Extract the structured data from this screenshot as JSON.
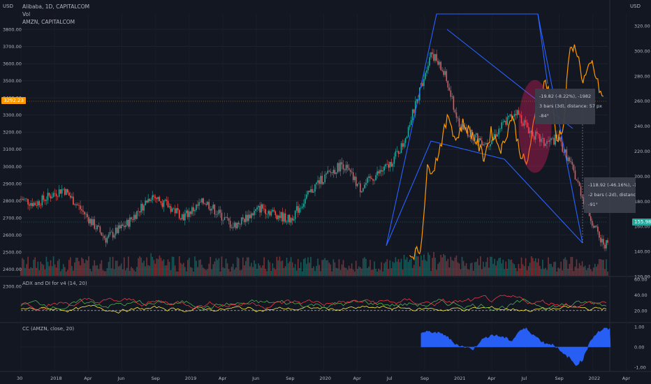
{
  "header": {
    "symbol": "Alibaba, 1D, CAPITALCOM",
    "vol": "Vol",
    "compare": "AMZN, CAPITALCOM",
    "currency_left": "USD",
    "currency_right": "USD"
  },
  "panes": {
    "adx_label": "ADX and DI for v4 (14, 20)",
    "cc_label": "CC (AMZN, close, 20)"
  },
  "tooltips": {
    "upper": {
      "range": "-19.82 (-8.22%), -1982",
      "bars": "3 bars (3d), distance: 57 px",
      "angle": "-84°"
    },
    "lower": {
      "range": "-118.92 (-46.16%), -11",
      "bars": "-2 bars (-2d), distance:",
      "angle": "-91°"
    }
  },
  "price_tags": {
    "left": "3292.23",
    "right": "155.98"
  },
  "colors": {
    "background": "#131722",
    "candle_up": "#26a69a",
    "candle_down": "#ef5350",
    "amzn_line": "#ff9800",
    "pattern_lines": "#2962ff",
    "adx": "#ffeb3b",
    "di_plus": "#4caf50",
    "di_minus": "#f23645",
    "cc_fill": "#2962ff",
    "highlight": "#e91e63"
  },
  "chart_data": {
    "type": "line",
    "title": "Alibaba, 1D, CAPITALCOM",
    "x_axis": {
      "ticks": [
        "30",
        "2018",
        "Apr",
        "Jun",
        "Sep",
        "2019",
        "Apr",
        "Jun",
        "Sep",
        "2020",
        "Apr",
        "Jul",
        "Sep",
        "2021",
        "Apr",
        "Jul",
        "Sep",
        "2022",
        "Apr"
      ]
    },
    "y_axis_left": {
      "label": "USD",
      "ticks": [
        "3800.00",
        "3700.00",
        "3600.00",
        "3500.00",
        "3400.00",
        "3300.00",
        "3200.00",
        "3100.00",
        "3000.00",
        "2900.00",
        "2800.00",
        "2700.00",
        "2600.00",
        "2500.00",
        "2400.00",
        "2300.00"
      ],
      "ylim": [
        2300,
        3800
      ]
    },
    "y_axis_right": {
      "label": "USD",
      "ticks": [
        "320.00",
        "300.00",
        "280.00",
        "260.00",
        "240.00",
        "220.00",
        "200.00",
        "180.00",
        "160.00",
        "140.00",
        "120.00"
      ],
      "ylim": [
        120,
        320
      ]
    },
    "series": [
      {
        "name": "Alibaba, 1D, CAPITALCOM",
        "axis": "right",
        "x_index": [
          0,
          20,
          60,
          90,
          120,
          150,
          185,
          230,
          260,
          300,
          340,
          380,
          420,
          455,
          480,
          500,
          520,
          540,
          560,
          580,
          600,
          620,
          640,
          660,
          680,
          700,
          720,
          740,
          760,
          780,
          800,
          820,
          830
        ],
        "values": [
          182,
          178,
          190,
          170,
          150,
          162,
          185,
          168,
          180,
          160,
          175,
          165,
          195,
          210,
          190,
          200,
          208,
          225,
          260,
          300,
          280,
          240,
          232,
          226,
          240,
          252,
          236,
          226,
          230,
          206,
          175,
          148,
          145
        ]
      },
      {
        "name": "AMZN, CAPITALCOM",
        "axis": "left",
        "x_index": [
          550,
          565,
          575,
          585,
          595,
          605,
          615,
          625,
          640,
          655,
          665,
          680,
          695,
          705,
          715,
          730,
          742,
          750,
          758,
          768,
          775,
          785,
          795,
          808,
          818,
          825
        ],
        "values": [
          2480,
          2510,
          2980,
          3000,
          3150,
          3300,
          3150,
          3250,
          3180,
          3050,
          3200,
          3100,
          3300,
          3100,
          3000,
          3350,
          3500,
          3400,
          3150,
          3250,
          3650,
          3700,
          3500,
          3600,
          3450,
          3380
        ]
      }
    ],
    "annotations": [
      {
        "type": "pattern",
        "label": "harmonic pattern",
        "points_x": [
          550,
          625,
          768,
          830
        ]
      },
      {
        "type": "ellipse",
        "label": "highlight"
      }
    ],
    "volume": {
      "name": "Vol"
    },
    "indicators": [
      {
        "name": "ADX and DI for v4 (14, 20)",
        "ticks": [
          "60.00",
          "40.00",
          "20.00"
        ],
        "ylim": [
          10,
          60
        ],
        "threshold": 20
      },
      {
        "name": "CC (AMZN, close, 20)",
        "ticks": [
          "1.00",
          "0.00",
          "-1.00"
        ],
        "ylim": [
          -1,
          1
        ]
      }
    ]
  }
}
